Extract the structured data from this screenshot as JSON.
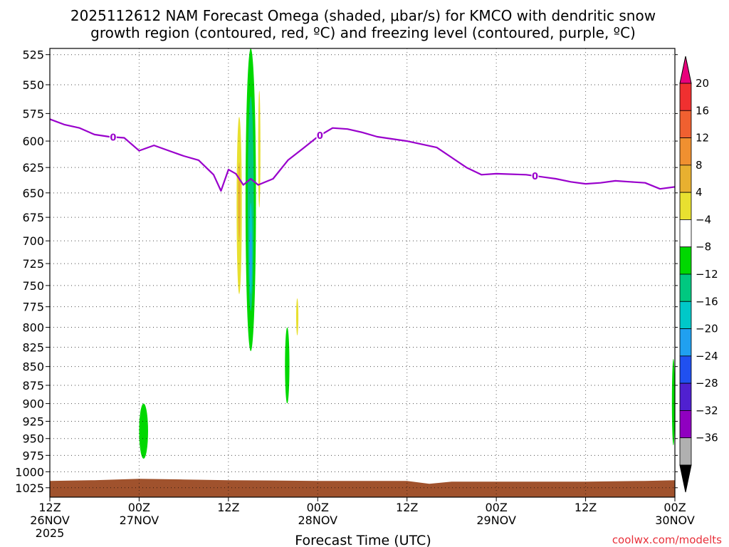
{
  "title": {
    "line1": "2025112612 NAM Forecast Omega (shaded, μbar/s) for KMCO with dendritic snow",
    "line2": "growth region (contoured, red, ºC) and freezing level (contoured, purple, ºC)"
  },
  "chart_data": {
    "type": "time-height contour",
    "title": "2025112612 NAM Forecast Omega (shaded, μbar/s) for KMCO with dendritic snow growth region (contoured, red, ºC) and freezing level (contoured, purple, ºC)",
    "xlabel": "Forecast Time (UTC)",
    "ylabel": "",
    "x_range_hours": [
      0,
      84
    ],
    "x_ticks": [
      {
        "h": 0,
        "label": "12Z",
        "date": "26NOV",
        "year": "2025"
      },
      {
        "h": 12,
        "label": "00Z",
        "date": "27NOV"
      },
      {
        "h": 24,
        "label": "12Z",
        "date": ""
      },
      {
        "h": 36,
        "label": "00Z",
        "date": "28NOV"
      },
      {
        "h": 48,
        "label": "12Z",
        "date": ""
      },
      {
        "h": 60,
        "label": "00Z",
        "date": "29NOV"
      },
      {
        "h": 72,
        "label": "12Z",
        "date": ""
      },
      {
        "h": 84,
        "label": "00Z",
        "date": "30NOV"
      }
    ],
    "y_ticks": [
      525,
      550,
      575,
      600,
      625,
      650,
      675,
      700,
      725,
      750,
      775,
      800,
      825,
      850,
      875,
      900,
      925,
      950,
      975,
      1000,
      1025
    ],
    "y_axis": "pressure (hPa), reversed, log scale",
    "grid": true,
    "colorbar": {
      "labels": [
        "20",
        "16",
        "12",
        "8",
        "4",
        "−4",
        "−8",
        "−12",
        "−16",
        "−20",
        "−24",
        "−28",
        "−32",
        "−36"
      ],
      "colors": [
        "#e8007c",
        "#f03030",
        "#f06030",
        "#f09030",
        "#e8b030",
        "#e8e030",
        "#ffffff",
        "#00d800",
        "#00c880",
        "#00c8c8",
        "#20a0f0",
        "#2050f0",
        "#5020d0",
        "#9000c0",
        "#b0b0b0",
        "#000000"
      ]
    },
    "freezing_level": {
      "color": "#9900cc",
      "contour_label": "0",
      "x_hours": [
        0,
        2,
        4,
        6,
        8,
        10,
        12,
        14,
        16,
        18,
        20,
        22,
        23,
        24,
        25,
        26,
        27,
        28,
        30,
        32,
        34,
        36,
        38,
        40,
        42,
        44,
        48,
        52,
        56,
        58,
        60,
        64,
        68,
        70,
        72,
        74,
        76,
        78,
        80,
        82,
        84
      ],
      "pressure_hPa": [
        580,
        585,
        588,
        594,
        596,
        597,
        609,
        604,
        609,
        614,
        618,
        632,
        648,
        627,
        631,
        642,
        636,
        642,
        636,
        618,
        607,
        596,
        588,
        589,
        592,
        596,
        600,
        606,
        625,
        632,
        631,
        632,
        636,
        639,
        641,
        640,
        638,
        639,
        640,
        646,
        644
      ]
    },
    "omega_regions": [
      {
        "omega_class": "-4 to -8",
        "color": "#00d800",
        "time_h": [
          12.0,
          13.2
        ],
        "pressure_hPa": [
          900,
          980
        ]
      },
      {
        "omega_class": "-4 to -8",
        "color": "#00d800",
        "time_h": [
          26.3,
          27.7
        ],
        "pressure_hPa": [
          520,
          830
        ]
      },
      {
        "omega_class": "-8 to -12",
        "color": "#00c880",
        "time_h": [
          26.6,
          27.4
        ],
        "pressure_hPa": [
          560,
          780
        ]
      },
      {
        "omega_class": "-12 to -16",
        "color": "#00c8c8",
        "time_h": [
          26.8,
          27.2
        ],
        "pressure_hPa": [
          660,
          760
        ]
      },
      {
        "omega_class": "-16 to -20",
        "color": "#20a0f0",
        "time_h": [
          26.9,
          27.1
        ],
        "pressure_hPa": [
          690,
          745
        ]
      },
      {
        "omega_class": "-4 to -8",
        "color": "#00d800",
        "time_h": [
          31.6,
          32.2
        ],
        "pressure_hPa": [
          800,
          900
        ]
      },
      {
        "omega_class": "-4 to -8",
        "color": "#00d800",
        "time_h": [
          83.6,
          84.0
        ],
        "pressure_hPa": [
          840,
          960
        ]
      },
      {
        "omega_class": "4 to 8",
        "color": "#e8e030",
        "time_h": [
          25.1,
          25.8
        ],
        "pressure_hPa": [
          578,
          760
        ]
      },
      {
        "omega_class": "4 to 8",
        "color": "#e8e030",
        "time_h": [
          28.0,
          28.3
        ],
        "pressure_hPa": [
          555,
          665
        ]
      },
      {
        "omega_class": "4 to 8",
        "color": "#e8e030",
        "time_h": [
          33.1,
          33.4
        ],
        "pressure_hPa": [
          765,
          810
        ]
      },
      {
        "omega_class": "8 to 12",
        "color": "#e8b030",
        "time_h": [
          25.3,
          25.6
        ],
        "pressure_hPa": [
          620,
          700
        ]
      }
    ],
    "terrain": {
      "color": "#a0522d",
      "pressure_hPa": 1012
    }
  },
  "xlabel": "Forecast Time (UTC)",
  "credit": "coolwx.com/modelts"
}
